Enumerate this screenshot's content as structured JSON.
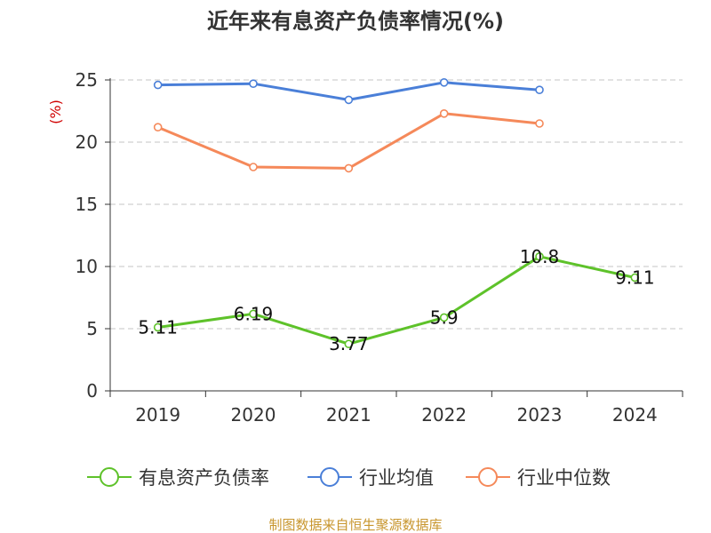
{
  "title": "近年来有息资产负债率情况(%)",
  "source": "制图数据来自恒生聚源数据库",
  "chart_data": {
    "type": "line",
    "title": "近年来有息资产负债率情况(%)",
    "ylabel": "(%)",
    "xlabel": "",
    "categories": [
      "2019",
      "2020",
      "2021",
      "2022",
      "2023",
      "2024"
    ],
    "ylim": [
      0,
      25
    ],
    "yticks": [
      0,
      5,
      10,
      15,
      20,
      25
    ],
    "grid": true,
    "legend_position": "bottom",
    "series": [
      {
        "name": "有息资产负债率",
        "color": "#5ec22a",
        "values": [
          5.11,
          6.19,
          3.77,
          5.9,
          10.8,
          9.11
        ],
        "labels": [
          "5.11",
          "6.19",
          "3.77",
          "5.9",
          "10.8",
          "9.11"
        ]
      },
      {
        "name": "行业均值",
        "color": "#4a7fd8",
        "values": [
          24.6,
          24.7,
          23.4,
          24.8,
          24.2,
          null
        ]
      },
      {
        "name": "行业中位数",
        "color": "#f5895a",
        "values": [
          21.2,
          18.0,
          17.9,
          22.3,
          21.5,
          null
        ]
      }
    ]
  }
}
